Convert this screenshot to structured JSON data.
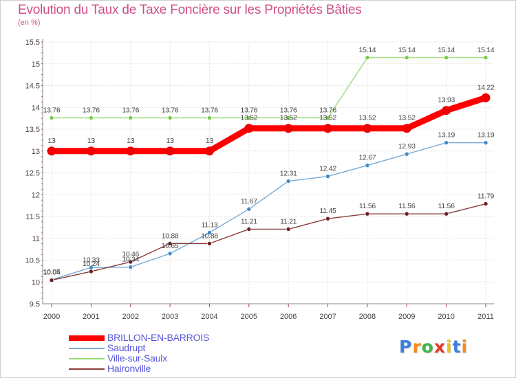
{
  "title": "Evolution du Taux de Taxe Foncière sur les Propriétés Bâties",
  "unit_label": "(en %)",
  "logo": {
    "text": [
      "P",
      "r",
      "o",
      "x",
      "i",
      "t",
      "i"
    ],
    "colors": [
      "#3f7fe0",
      "#f08c1c",
      "#3fb44a",
      "#e23a2e",
      "#e8c21c",
      "#3f7fe0",
      "#f08c1c"
    ]
  },
  "chart_data": {
    "type": "line",
    "title": "Evolution du Taux de Taxe Foncière sur les Propriétés Bâties",
    "ylabel": "(en %)",
    "xlabel": "",
    "x": [
      "2000",
      "2001",
      "2002",
      "2003",
      "2004",
      "2005",
      "2006",
      "2007",
      "2008",
      "2009",
      "2010",
      "2011"
    ],
    "ylim": [
      9.5,
      15.5
    ],
    "yticks": [
      "9.5",
      "10",
      "10.5",
      "11",
      "11.5",
      "12",
      "12.5",
      "13",
      "13.5",
      "14",
      "14.5",
      "15",
      "15.5"
    ],
    "grid": true,
    "legend_position": "bottom-left",
    "series": [
      {
        "name": "BRILLON-EN-BARROIS",
        "color": "#ff0000",
        "marker": "#ee0000",
        "thick": true,
        "values": [
          13,
          13,
          13,
          13,
          13,
          13.52,
          13.52,
          13.52,
          13.52,
          13.52,
          13.93,
          14.22
        ],
        "labels": [
          "13",
          "13",
          "13",
          "13",
          "13",
          "13.52",
          "13.52",
          "13.52",
          "13.52",
          "13.52",
          "13.93",
          "14.22"
        ]
      },
      {
        "name": "Saudrupt",
        "color": "#77aad6",
        "marker": "#3f8ac9",
        "thick": false,
        "values": [
          10.05,
          10.33,
          10.34,
          10.65,
          11.13,
          11.67,
          12.31,
          12.42,
          12.67,
          12.93,
          13.19,
          13.19
        ],
        "labels": [
          "10.05",
          "10.33",
          "10.34",
          "10.65",
          "11.13",
          "11.67",
          "12.31",
          "12.42",
          "12.67",
          "12.93",
          "13.19",
          "13.19"
        ]
      },
      {
        "name": "Ville-sur-Saulx",
        "color": "#99dd77",
        "marker": "#77cc44",
        "thick": false,
        "values": [
          13.76,
          13.76,
          13.76,
          13.76,
          13.76,
          13.76,
          13.76,
          13.76,
          15.14,
          15.14,
          15.14,
          15.14
        ],
        "labels": [
          "13.76",
          "13.76",
          "13.76",
          "13.76",
          "13.76",
          "13.76",
          "13.76",
          "13.76",
          "15.14",
          "15.14",
          "15.14",
          "15.14"
        ]
      },
      {
        "name": "Haironville",
        "color": "#8b3a3a",
        "marker": "#6e1e1e",
        "thick": false,
        "values": [
          10.04,
          10.24,
          10.46,
          10.88,
          10.88,
          11.21,
          11.21,
          11.45,
          11.56,
          11.56,
          11.56,
          11.79
        ],
        "labels": [
          "10.04",
          "10.24",
          "10.46",
          "10.88",
          "10.88",
          "11.21",
          "11.21",
          "11.45",
          "11.56",
          "11.56",
          "11.56",
          "11.79"
        ]
      }
    ]
  }
}
